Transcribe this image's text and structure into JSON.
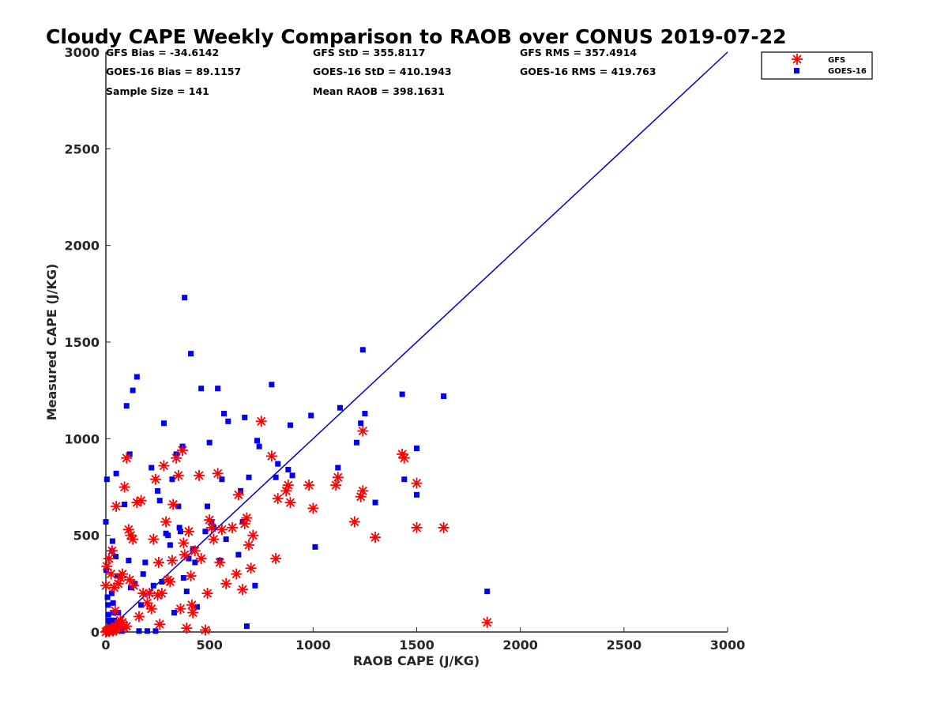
{
  "chart_data": {
    "type": "scatter",
    "title": "Cloudy CAPE Weekly Comparison to RAOB over CONUS 2019-07-22",
    "xlabel": "RAOB CAPE (J/KG)",
    "ylabel": "Measured CAPE (J/KG)",
    "xlim": [
      0,
      3000
    ],
    "ylim": [
      0,
      3000
    ],
    "xticks": [
      "0",
      "500",
      "1000",
      "1500",
      "2000",
      "2500",
      "3000"
    ],
    "yticks": [
      "0",
      "500",
      "1000",
      "1500",
      "2000",
      "2500",
      "3000"
    ],
    "grid": false,
    "legend_position": "top-right",
    "stats": {
      "gfs_bias": "GFS Bias = -34.6142",
      "goes_bias": "GOES-16 Bias = 89.1157",
      "sample_size": "Sample Size = 141",
      "gfs_std": "GFS StD = 355.8117",
      "goes_std": "GOES-16 StD = 410.1943",
      "mean_raob": "Mean RAOB = 398.1631",
      "gfs_rms": "GFS RMS = 357.4914",
      "goes_rms": "GOES-16 RMS = 419.763"
    },
    "reference_line": {
      "x": [
        0,
        3000
      ],
      "y": [
        0,
        3000
      ],
      "color": "#0000cc"
    },
    "series": [
      {
        "name": "GFS",
        "marker": "asterisk",
        "color": "#ff0000",
        "points": [
          [
            0,
            0
          ],
          [
            5,
            5
          ],
          [
            10,
            10
          ],
          [
            15,
            2
          ],
          [
            20,
            8
          ],
          [
            25,
            15
          ],
          [
            30,
            20
          ],
          [
            35,
            5
          ],
          [
            40,
            12
          ],
          [
            45,
            30
          ],
          [
            50,
            10
          ],
          [
            55,
            25
          ],
          [
            60,
            40
          ],
          [
            70,
            60
          ],
          [
            80,
            50
          ],
          [
            90,
            20
          ],
          [
            100,
            30
          ],
          [
            0,
            240
          ],
          [
            5,
            340
          ],
          [
            15,
            380
          ],
          [
            25,
            300
          ],
          [
            30,
            420
          ],
          [
            40,
            230
          ],
          [
            45,
            110
          ],
          [
            50,
            650
          ],
          [
            60,
            250
          ],
          [
            70,
            280
          ],
          [
            80,
            300
          ],
          [
            90,
            750
          ],
          [
            100,
            900
          ],
          [
            110,
            530
          ],
          [
            115,
            270
          ],
          [
            120,
            500
          ],
          [
            130,
            480
          ],
          [
            135,
            240
          ],
          [
            150,
            670
          ],
          [
            160,
            80
          ],
          [
            170,
            680
          ],
          [
            180,
            200
          ],
          [
            200,
            150
          ],
          [
            210,
            200
          ],
          [
            220,
            120
          ],
          [
            230,
            480
          ],
          [
            240,
            790
          ],
          [
            250,
            190
          ],
          [
            255,
            360
          ],
          [
            260,
            40
          ],
          [
            270,
            200
          ],
          [
            280,
            860
          ],
          [
            290,
            570
          ],
          [
            300,
            270
          ],
          [
            310,
            260
          ],
          [
            320,
            370
          ],
          [
            325,
            660
          ],
          [
            340,
            900
          ],
          [
            350,
            810
          ],
          [
            360,
            120
          ],
          [
            370,
            940
          ],
          [
            375,
            460
          ],
          [
            380,
            400
          ],
          [
            390,
            20
          ],
          [
            400,
            520
          ],
          [
            410,
            290
          ],
          [
            415,
            140
          ],
          [
            420,
            100
          ],
          [
            430,
            420
          ],
          [
            450,
            810
          ],
          [
            460,
            380
          ],
          [
            480,
            10
          ],
          [
            490,
            200
          ],
          [
            500,
            580
          ],
          [
            510,
            540
          ],
          [
            520,
            480
          ],
          [
            540,
            820
          ],
          [
            550,
            360
          ],
          [
            560,
            530
          ],
          [
            580,
            250
          ],
          [
            610,
            540
          ],
          [
            630,
            300
          ],
          [
            640,
            710
          ],
          [
            660,
            220
          ],
          [
            670,
            560
          ],
          [
            680,
            590
          ],
          [
            690,
            450
          ],
          [
            700,
            330
          ],
          [
            710,
            500
          ],
          [
            750,
            1090
          ],
          [
            800,
            910
          ],
          [
            820,
            380
          ],
          [
            830,
            690
          ],
          [
            870,
            730
          ],
          [
            880,
            760
          ],
          [
            890,
            670
          ],
          [
            980,
            760
          ],
          [
            1000,
            640
          ],
          [
            1110,
            760
          ],
          [
            1120,
            800
          ],
          [
            1200,
            570
          ],
          [
            1230,
            700
          ],
          [
            1240,
            730
          ],
          [
            1240,
            1040
          ],
          [
            1300,
            490
          ],
          [
            1430,
            920
          ],
          [
            1440,
            900
          ],
          [
            1500,
            770
          ],
          [
            1500,
            540
          ],
          [
            1630,
            540
          ],
          [
            1840,
            50
          ]
        ]
      },
      {
        "name": "GOES-16",
        "marker": "square",
        "color": "#0000ee",
        "points": [
          [
            0,
            570
          ],
          [
            2,
            320
          ],
          [
            5,
            790
          ],
          [
            8,
            180
          ],
          [
            10,
            140
          ],
          [
            12,
            90
          ],
          [
            15,
            60
          ],
          [
            18,
            40
          ],
          [
            20,
            20
          ],
          [
            22,
            10
          ],
          [
            25,
            5
          ],
          [
            28,
            200
          ],
          [
            30,
            420
          ],
          [
            32,
            470
          ],
          [
            35,
            150
          ],
          [
            38,
            100
          ],
          [
            40,
            60
          ],
          [
            42,
            30
          ],
          [
            45,
            10
          ],
          [
            48,
            390
          ],
          [
            50,
            820
          ],
          [
            55,
            290
          ],
          [
            60,
            100
          ],
          [
            65,
            50
          ],
          [
            70,
            20
          ],
          [
            80,
            5
          ],
          [
            90,
            660
          ],
          [
            100,
            1170
          ],
          [
            110,
            370
          ],
          [
            115,
            920
          ],
          [
            120,
            230
          ],
          [
            130,
            1250
          ],
          [
            140,
            250
          ],
          [
            150,
            1320
          ],
          [
            160,
            5
          ],
          [
            170,
            140
          ],
          [
            180,
            300
          ],
          [
            190,
            360
          ],
          [
            200,
            5
          ],
          [
            220,
            850
          ],
          [
            230,
            240
          ],
          [
            240,
            5
          ],
          [
            250,
            730
          ],
          [
            260,
            680
          ],
          [
            270,
            260
          ],
          [
            280,
            1080
          ],
          [
            290,
            510
          ],
          [
            300,
            500
          ],
          [
            310,
            450
          ],
          [
            320,
            790
          ],
          [
            330,
            100
          ],
          [
            340,
            920
          ],
          [
            350,
            650
          ],
          [
            355,
            540
          ],
          [
            360,
            520
          ],
          [
            370,
            960
          ],
          [
            375,
            280
          ],
          [
            380,
            1730
          ],
          [
            390,
            210
          ],
          [
            400,
            380
          ],
          [
            410,
            1440
          ],
          [
            420,
            430
          ],
          [
            430,
            360
          ],
          [
            440,
            130
          ],
          [
            460,
            1260
          ],
          [
            480,
            520
          ],
          [
            490,
            650
          ],
          [
            500,
            980
          ],
          [
            510,
            570
          ],
          [
            520,
            540
          ],
          [
            540,
            1260
          ],
          [
            550,
            370
          ],
          [
            560,
            790
          ],
          [
            570,
            1130
          ],
          [
            580,
            480
          ],
          [
            590,
            1090
          ],
          [
            640,
            400
          ],
          [
            650,
            730
          ],
          [
            660,
            570
          ],
          [
            670,
            1110
          ],
          [
            680,
            30
          ],
          [
            690,
            800
          ],
          [
            720,
            240
          ],
          [
            730,
            990
          ],
          [
            740,
            960
          ],
          [
            800,
            1280
          ],
          [
            820,
            800
          ],
          [
            830,
            870
          ],
          [
            880,
            840
          ],
          [
            890,
            1070
          ],
          [
            900,
            810
          ],
          [
            990,
            1120
          ],
          [
            1010,
            440
          ],
          [
            1120,
            850
          ],
          [
            1130,
            1160
          ],
          [
            1210,
            980
          ],
          [
            1230,
            1080
          ],
          [
            1240,
            1460
          ],
          [
            1250,
            1130
          ],
          [
            1300,
            670
          ],
          [
            1430,
            1230
          ],
          [
            1440,
            790
          ],
          [
            1500,
            950
          ],
          [
            1500,
            710
          ],
          [
            1630,
            1220
          ],
          [
            1840,
            210
          ]
        ]
      }
    ]
  }
}
